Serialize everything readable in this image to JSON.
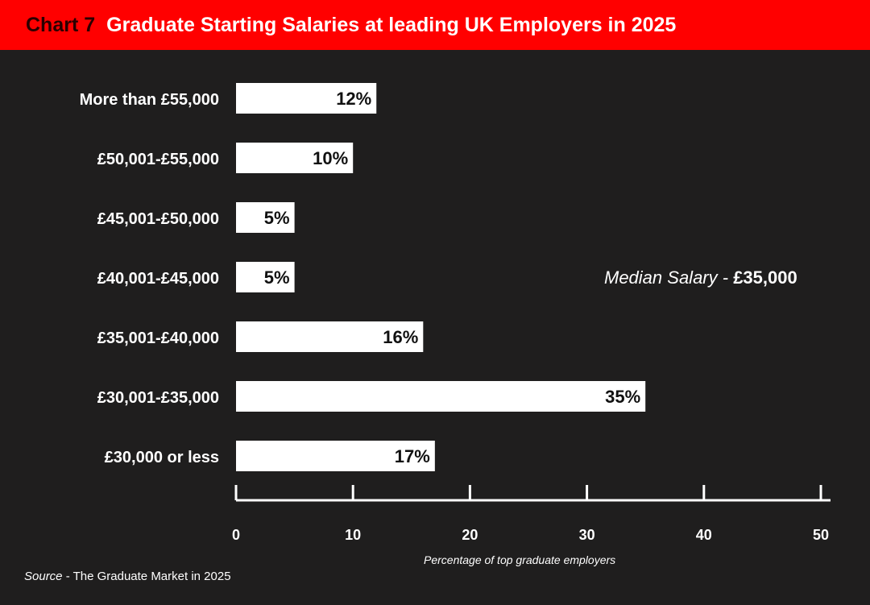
{
  "header": {
    "label": "Chart 7",
    "title": "Graduate Starting Salaries at leading UK Employers in 2025"
  },
  "colors": {
    "header_bg": "#ff0000",
    "header_label": "#2a0000",
    "background": "#1f1e1e",
    "bar": "#ffffff",
    "bar_label": "#111111",
    "text": "#ffffff"
  },
  "annotation": {
    "label": "Median Salary - ",
    "value": "£35,000"
  },
  "source": {
    "label": "Source",
    "text": " - The Graduate Market in 2025"
  },
  "chart_data": {
    "type": "bar",
    "orientation": "horizontal",
    "title": "Graduate Starting Salaries at leading UK Employers in 2025",
    "categories": [
      "More than £55,000",
      "£50,001-£55,000",
      "£45,001-£50,000",
      "£40,001-£45,000",
      "£35,001-£40,000",
      "£30,001-£35,000",
      "£30,000 or less"
    ],
    "values": [
      12,
      10,
      5,
      5,
      16,
      35,
      17
    ],
    "value_labels": [
      "12%",
      "10%",
      "5%",
      "5%",
      "16%",
      "35%",
      "17%"
    ],
    "xlabel": "Percentage of top graduate employers",
    "ylabel": "",
    "xlim": [
      0,
      50
    ],
    "xticks": [
      0,
      10,
      20,
      30,
      40,
      50
    ],
    "grid": false,
    "legend": "none"
  }
}
